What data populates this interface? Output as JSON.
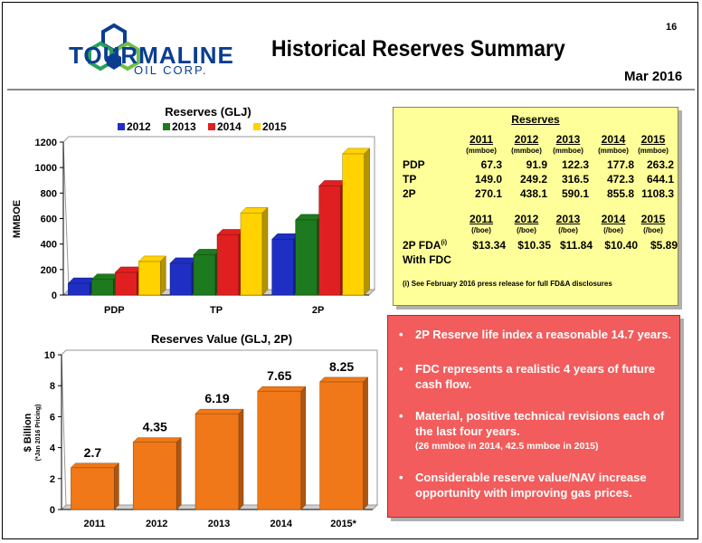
{
  "page": {
    "number": "16",
    "title": "Historical Reserves Summary",
    "date": "Mar 2016"
  },
  "logo": {
    "name": "TOURMALINE",
    "sub": "OIL CORP."
  },
  "colors": {
    "s2012": "#1f2fc4",
    "s2013": "#1e7a1e",
    "s2014": "#e02020",
    "s2015": "#ffd200",
    "value_bar": "#f07818",
    "panel": "#ffff99",
    "bullets_bg": "#f25c5c"
  },
  "chart_data": [
    {
      "type": "bar",
      "title": "Reserves (GLJ)",
      "ylabel": "MMBOE",
      "xlabel": "",
      "categories": [
        "PDP",
        "TP",
        "2P"
      ],
      "series": [
        {
          "name": "2012",
          "values": [
            91.9,
            249.2,
            438.1
          ]
        },
        {
          "name": "2013",
          "values": [
            122.3,
            316.5,
            590.1
          ]
        },
        {
          "name": "2014",
          "values": [
            177.8,
            472.3,
            855.8
          ]
        },
        {
          "name": "2015",
          "values": [
            263.2,
            644.1,
            1108.3
          ]
        }
      ],
      "ylim": [
        0,
        1200
      ],
      "yticks": [
        "0",
        "200",
        "400",
        "600",
        "800",
        "1000",
        "1200"
      ],
      "legend": "top",
      "grid": false
    },
    {
      "type": "bar",
      "title": "Reserves Value (GLJ, 2P)",
      "ylabel": "$ Billion",
      "ylabel2": "(*Jan 2016 Pricing)",
      "xlabel": "",
      "categories": [
        "2011",
        "2012",
        "2013",
        "2014",
        "2015*"
      ],
      "values": [
        2.7,
        4.35,
        6.19,
        7.65,
        8.25
      ],
      "labels": [
        "2.7",
        "4.35",
        "6.19",
        "7.65",
        "8.25"
      ],
      "ylim": [
        0,
        10
      ],
      "yticks": [
        "0",
        "2",
        "4",
        "6",
        "8",
        "10"
      ],
      "grid": false
    }
  ],
  "table": {
    "title": "Reserves",
    "years": [
      "2011",
      "2012",
      "2013",
      "2014",
      "2015"
    ],
    "units_vol": [
      "(mmboe)",
      "(mmboe)",
      "(mmboe)",
      "(mmboe)",
      "(mmboe)"
    ],
    "rows": [
      {
        "label": "PDP",
        "values": [
          "67.3",
          "91.9",
          "122.3",
          "177.8",
          "263.2"
        ]
      },
      {
        "label": "TP",
        "values": [
          "149.0",
          "249.2",
          "316.5",
          "472.3",
          "644.1"
        ]
      },
      {
        "label": "2P",
        "values": [
          "270.1",
          "438.1",
          "590.1",
          "855.8",
          "1108.3"
        ]
      }
    ],
    "units_fda": [
      "(/boe)",
      "(/boe)",
      "(/boe)",
      "(/boe)",
      "(/boe)"
    ],
    "fda_label": "2P FDA",
    "fda_sup": "(i)",
    "fda_label2": "With FDC",
    "fda_values": [
      "$13.34",
      "$10.35",
      "$11.84",
      "$10.40",
      "$5.89"
    ],
    "footnote": "(i)  See February 2016 press release for full FD&A disclosures"
  },
  "bullets": [
    {
      "text": "2P Reserve life index a reasonable 14.7 years."
    },
    {
      "text": "FDC represents a realistic 4 years of future cash flow."
    },
    {
      "text": "Material, positive technical revisions each of the last four years.",
      "sub": "(26 mmboe in 2014, 42.5 mmboe in 2015)"
    },
    {
      "text": "Considerable reserve value/NAV increase opportunity with improving gas prices."
    }
  ],
  "bullet_char": "•"
}
